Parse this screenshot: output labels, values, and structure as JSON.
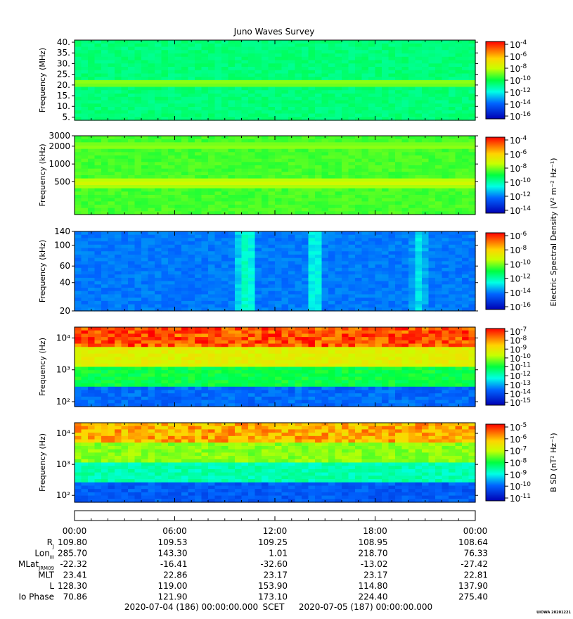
{
  "title": "Juno Waves Survey",
  "footer": {
    "start": "2020-07-04 (186) 00:00:00.000",
    "scet": "SCET",
    "end": "2020-07-05 (187) 00:00:00.000",
    "stamp": "UIOWA 20201221"
  },
  "time_ticks": [
    "00:00",
    "06:00",
    "12:00",
    "18:00",
    "00:00"
  ],
  "ephemeris": [
    {
      "label": "R",
      "sub": "J",
      "values": [
        "109.80",
        "109.53",
        "109.25",
        "108.95",
        "108.64"
      ]
    },
    {
      "label": "Lon",
      "sub": "III",
      "values": [
        "285.70",
        "143.30",
        "1.01",
        "218.70",
        "76.33"
      ]
    },
    {
      "label": "MLat",
      "sub": "JRM09",
      "values": [
        "-22.32",
        "-16.41",
        "-32.60",
        "-13.02",
        "-27.42"
      ]
    },
    {
      "label": "MLT",
      "sub": "",
      "values": [
        "23.41",
        "22.86",
        "23.17",
        "23.17",
        "22.81"
      ]
    },
    {
      "label": "L",
      "sub": "",
      "values": [
        "128.30",
        "119.00",
        "153.90",
        "114.80",
        "137.90"
      ]
    },
    {
      "label": "Io Phase",
      "sub": "",
      "values": [
        "70.86",
        "121.90",
        "173.10",
        "224.40",
        "275.40"
      ]
    }
  ],
  "colors": {
    "background": "#00ffc8",
    "spectrum_low": "#0000c8",
    "spectrum_high": "#ff0000"
  },
  "chart_data": [
    {
      "type": "heatmap",
      "panel": "hfwbr",
      "ylabel": "Frequency (MHz)",
      "yscale": "linear",
      "ylim": [
        3.5,
        41
      ],
      "yticks": [
        {
          "v": 40,
          "t": "40."
        },
        {
          "v": 35,
          "t": "35."
        },
        {
          "v": 30,
          "t": "30."
        },
        {
          "v": 25,
          "t": "25."
        },
        {
          "v": 20,
          "t": "20."
        },
        {
          "v": 15,
          "t": "15."
        },
        {
          "v": 10,
          "t": "10."
        },
        {
          "v": 5,
          "t": "5."
        }
      ],
      "base_level": 0.45,
      "bands": [
        {
          "y": 21,
          "width": 1.2,
          "level": 0.62
        }
      ],
      "colorbar": {
        "label": "",
        "ticks": [
          "-4",
          "-6",
          "-8",
          "-10",
          "-12",
          "-14",
          "-16"
        ]
      }
    },
    {
      "type": "heatmap",
      "panel": "hfr",
      "ylabel": "Frequency (kHz)",
      "yscale": "log",
      "ylim": [
        140,
        3000
      ],
      "yticks": [
        {
          "v": 3000,
          "t": "3000"
        },
        {
          "v": 2000,
          "t": "2000"
        },
        {
          "v": 1000,
          "t": "1000"
        },
        {
          "v": 500,
          "t": "500"
        }
      ],
      "base_level": 0.55,
      "bands": [
        {
          "y": 2000,
          "width": 0.06,
          "level": 0.62
        },
        {
          "y": 480,
          "width": 0.06,
          "level": 0.68
        }
      ],
      "colorbar": {
        "label": "Electric Spectral Density (V² m⁻² Hz⁻¹)",
        "ticks": [
          "-4",
          "-6",
          "-8",
          "-10",
          "-12",
          "-14"
        ]
      }
    },
    {
      "type": "heatmap",
      "panel": "lfr-e",
      "ylabel": "Frequency (kHz)",
      "yscale": "log",
      "ylim": [
        20,
        140
      ],
      "yticks": [
        {
          "v": 140,
          "t": "140"
        },
        {
          "v": 100,
          "t": "100"
        },
        {
          "v": 60,
          "t": "60"
        },
        {
          "v": 40,
          "t": "40"
        },
        {
          "v": 20,
          "t": "20"
        }
      ],
      "base_level": 0.22,
      "bursts": [
        {
          "x": 0.43,
          "level": 0.4
        },
        {
          "x": 0.6,
          "level": 0.38
        },
        {
          "x": 0.86,
          "level": 0.33
        }
      ],
      "colorbar": {
        "label": "",
        "ticks": [
          "-6",
          "-8",
          "-10",
          "-12",
          "-14",
          "-16"
        ]
      }
    },
    {
      "type": "heatmap",
      "panel": "lfr-e-low",
      "ylabel": "Frequency (Hz)",
      "yscale": "log",
      "ylim": [
        70,
        22000
      ],
      "yticks": [
        {
          "v": 10000,
          "t": "10⁴"
        },
        {
          "v": 1000,
          "t": "10³"
        },
        {
          "v": 100,
          "t": "10²"
        }
      ],
      "gradient": [
        0.2,
        0.5,
        0.7,
        0.92
      ],
      "colorbar": {
        "label": "",
        "ticks": [
          "-7",
          "-8",
          "-9",
          "-10",
          "-11",
          "-12",
          "-13",
          "-14",
          "-15"
        ]
      }
    },
    {
      "type": "heatmap",
      "panel": "b-field",
      "ylabel": "Frequency (Hz)",
      "yscale": "log",
      "ylim": [
        60,
        22000
      ],
      "yticks": [
        {
          "v": 10000,
          "t": "10⁴"
        },
        {
          "v": 1000,
          "t": "10³"
        },
        {
          "v": 100,
          "t": "10²"
        }
      ],
      "gradient": [
        0.18,
        0.4,
        0.6,
        0.82
      ],
      "colorbar": {
        "label": "B SD (nT² Hz⁻¹)",
        "ticks": [
          "-5",
          "-6",
          "-7",
          "-8",
          "-9",
          "-10",
          "-11"
        ]
      }
    }
  ]
}
